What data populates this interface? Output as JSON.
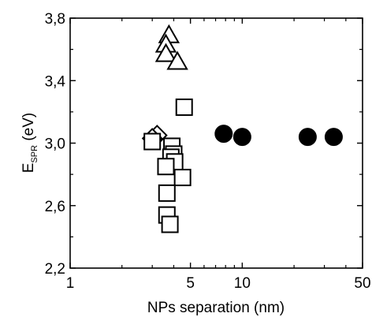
{
  "chart_data": {
    "type": "scatter",
    "xlabel": "NPs separation (nm)",
    "ylabel": {
      "main": "E",
      "subscript": "SPR",
      "unit": " (eV)"
    },
    "x_scale": "log",
    "xlim": [
      1,
      50
    ],
    "ylim": [
      2.2,
      3.8
    ],
    "x_ticks": [
      {
        "value": 1,
        "label": "1"
      },
      {
        "value": 5,
        "label": "5"
      },
      {
        "value": 10,
        "label": "10"
      },
      {
        "value": 50,
        "label": "50"
      }
    ],
    "y_ticks": [
      {
        "value": 2.2,
        "label": "2,2"
      },
      {
        "value": 2.6,
        "label": "2,6"
      },
      {
        "value": 3.0,
        "label": "3,0"
      },
      {
        "value": 3.4,
        "label": "3,4"
      },
      {
        "value": 3.8,
        "label": "3,8"
      }
    ],
    "grid": false,
    "legend": "none",
    "colors": {
      "marker_edge": "#000000",
      "open_fill": "#ffffff",
      "filled": "#000000"
    },
    "series": [
      {
        "marker": "triangle-open",
        "points": [
          {
            "x": 3.75,
            "y": 3.69
          },
          {
            "x": 3.6,
            "y": 3.63
          },
          {
            "x": 3.6,
            "y": 3.57
          },
          {
            "x": 4.2,
            "y": 3.52
          }
        ]
      },
      {
        "marker": "diamond-open",
        "points": [
          {
            "x": 3.2,
            "y": 3.05
          },
          {
            "x": 3.0,
            "y": 3.03
          }
        ]
      },
      {
        "marker": "square-open",
        "points": [
          {
            "x": 4.6,
            "y": 3.23
          },
          {
            "x": 3.0,
            "y": 3.01
          },
          {
            "x": 3.9,
            "y": 2.98
          },
          {
            "x": 4.0,
            "y": 2.93
          },
          {
            "x": 3.85,
            "y": 2.91
          },
          {
            "x": 4.05,
            "y": 2.88
          },
          {
            "x": 3.6,
            "y": 2.85
          },
          {
            "x": 4.5,
            "y": 2.78
          },
          {
            "x": 3.65,
            "y": 2.68
          },
          {
            "x": 3.65,
            "y": 2.54
          },
          {
            "x": 3.8,
            "y": 2.48
          }
        ]
      },
      {
        "marker": "circle-filled",
        "points": [
          {
            "x": 7.8,
            "y": 3.06
          },
          {
            "x": 10.0,
            "y": 3.04
          },
          {
            "x": 24.0,
            "y": 3.04
          },
          {
            "x": 34.0,
            "y": 3.04
          }
        ]
      }
    ]
  }
}
